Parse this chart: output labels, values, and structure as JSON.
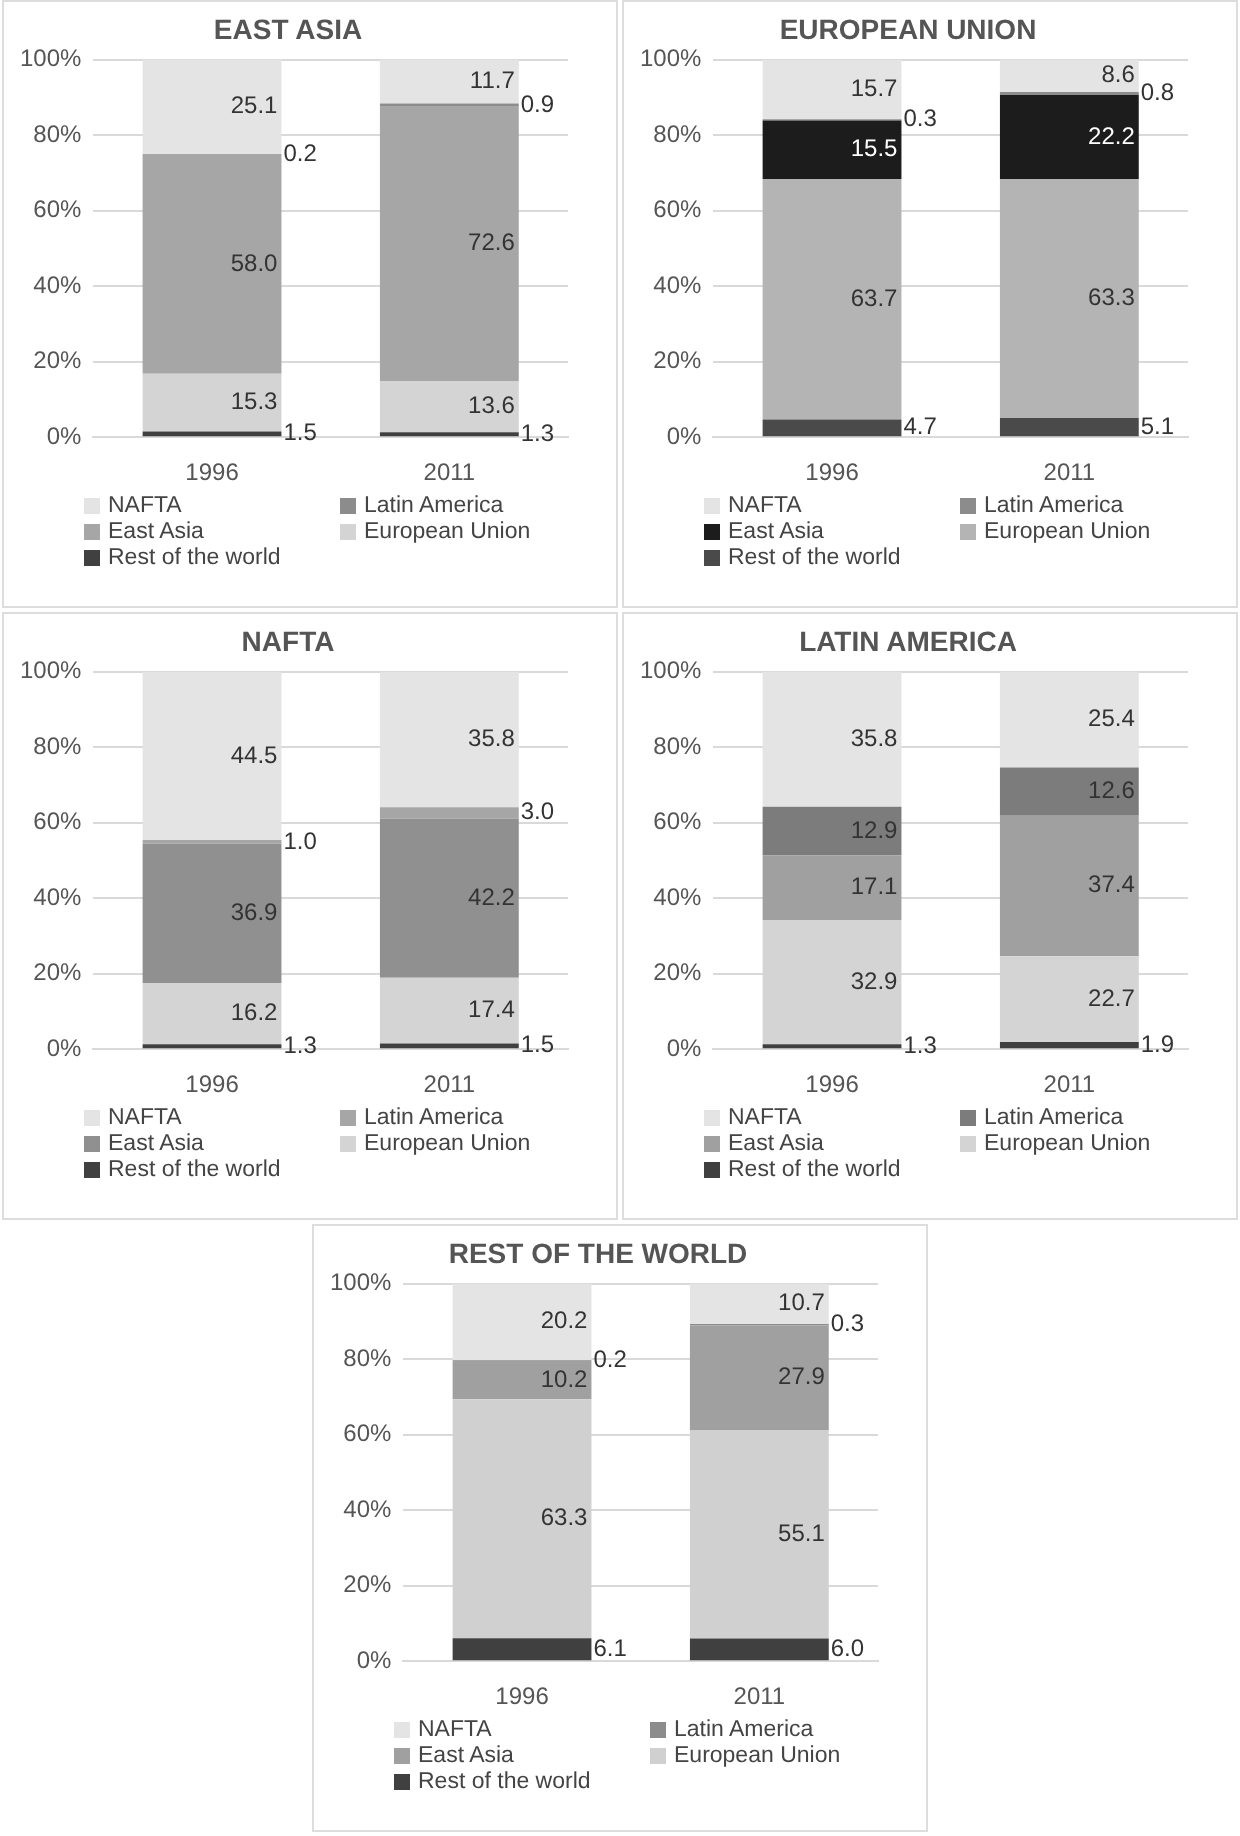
{
  "chart_data": [
    {
      "type": "bar",
      "title": "EAST ASIA",
      "categories": [
        "1996",
        "2011"
      ],
      "stacked": true,
      "legend": "bottom",
      "grid": "y",
      "ylim": [
        0,
        100
      ],
      "yticks": [
        {
          "value": 0,
          "label": "0%"
        },
        {
          "value": 20,
          "label": "20%"
        },
        {
          "value": 40,
          "label": "40%"
        },
        {
          "value": 60,
          "label": "60%"
        },
        {
          "value": 80,
          "label": "80%"
        },
        {
          "value": 100,
          "label": "100%"
        }
      ],
      "series": [
        {
          "name": "Rest of the world",
          "color": "#404040",
          "values": [
            1.5,
            1.3
          ],
          "value_labels": [
            "1.5",
            "1.3"
          ]
        },
        {
          "name": "European Union",
          "color": "#d4d4d4",
          "values": [
            15.3,
            13.6
          ],
          "value_labels": [
            "15.3",
            "13.6"
          ]
        },
        {
          "name": "East Asia",
          "color": "#a6a6a6",
          "values": [
            58.0,
            72.6
          ],
          "value_labels": [
            "58.0",
            "72.6"
          ]
        },
        {
          "name": "Latin America",
          "color": "#8c8c8c",
          "values": [
            0.2,
            0.9
          ],
          "value_labels": [
            "0.2",
            "0.9"
          ]
        },
        {
          "name": "NAFTA",
          "color": "#e4e4e4",
          "values": [
            25.1,
            11.7
          ],
          "value_labels": [
            "25.1",
            "11.7"
          ]
        }
      ]
    },
    {
      "type": "bar",
      "title": "EUROPEAN UNION",
      "categories": [
        "1996",
        "2011"
      ],
      "stacked": true,
      "legend": "bottom",
      "grid": "y",
      "ylim": [
        0,
        100
      ],
      "yticks": [
        {
          "value": 0,
          "label": "0%"
        },
        {
          "value": 20,
          "label": "20%"
        },
        {
          "value": 40,
          "label": "40%"
        },
        {
          "value": 60,
          "label": "60%"
        },
        {
          "value": 80,
          "label": "80%"
        },
        {
          "value": 100,
          "label": "100%"
        }
      ],
      "series": [
        {
          "name": "Rest of the world",
          "color": "#4a4a4a",
          "values": [
            4.7,
            5.1
          ],
          "value_labels": [
            "4.7",
            "5.1"
          ]
        },
        {
          "name": "European Union",
          "color": "#b4b4b4",
          "values": [
            63.7,
            63.3
          ],
          "value_labels": [
            "63.7",
            "63.3"
          ]
        },
        {
          "name": "East Asia",
          "color": "#1c1c1c",
          "values": [
            15.5,
            22.2
          ],
          "value_labels": [
            "15.5",
            "22.2"
          ]
        },
        {
          "name": "Latin America",
          "color": "#8c8c8c",
          "values": [
            0.3,
            0.8
          ],
          "value_labels": [
            "0.3",
            "0.8"
          ]
        },
        {
          "name": "NAFTA",
          "color": "#e4e4e4",
          "values": [
            15.7,
            8.6
          ],
          "value_labels": [
            "15.7",
            "8.6"
          ]
        }
      ]
    },
    {
      "type": "bar",
      "title": "NAFTA",
      "categories": [
        "1996",
        "2011"
      ],
      "stacked": true,
      "legend": "bottom",
      "grid": "y",
      "ylim": [
        0,
        100
      ],
      "yticks": [
        {
          "value": 0,
          "label": "0%"
        },
        {
          "value": 20,
          "label": "20%"
        },
        {
          "value": 40,
          "label": "40%"
        },
        {
          "value": 60,
          "label": "60%"
        },
        {
          "value": 80,
          "label": "80%"
        },
        {
          "value": 100,
          "label": "100%"
        }
      ],
      "series": [
        {
          "name": "Rest of the world",
          "color": "#404040",
          "values": [
            1.3,
            1.5
          ],
          "value_labels": [
            "1.3",
            "1.5"
          ]
        },
        {
          "name": "European Union",
          "color": "#d4d4d4",
          "values": [
            16.2,
            17.4
          ],
          "value_labels": [
            "16.2",
            "17.4"
          ]
        },
        {
          "name": "East Asia",
          "color": "#909090",
          "values": [
            36.9,
            42.2
          ],
          "value_labels": [
            "36.9",
            "42.2"
          ]
        },
        {
          "name": "Latin America",
          "color": "#a6a6a6",
          "values": [
            1.0,
            3.0
          ],
          "value_labels": [
            "1.0",
            "3.0"
          ]
        },
        {
          "name": "NAFTA",
          "color": "#e4e4e4",
          "values": [
            44.5,
            35.8
          ],
          "value_labels": [
            "44.5",
            "35.8"
          ]
        }
      ]
    },
    {
      "type": "bar",
      "title": "LATIN AMERICA",
      "categories": [
        "1996",
        "2011"
      ],
      "stacked": true,
      "legend": "bottom",
      "grid": "y",
      "ylim": [
        0,
        100
      ],
      "yticks": [
        {
          "value": 0,
          "label": "0%"
        },
        {
          "value": 20,
          "label": "20%"
        },
        {
          "value": 40,
          "label": "40%"
        },
        {
          "value": 60,
          "label": "60%"
        },
        {
          "value": 80,
          "label": "80%"
        },
        {
          "value": 100,
          "label": "100%"
        }
      ],
      "series": [
        {
          "name": "Rest of the world",
          "color": "#404040",
          "values": [
            1.3,
            1.9
          ],
          "value_labels": [
            "1.3",
            "1.9"
          ]
        },
        {
          "name": "European Union",
          "color": "#d4d4d4",
          "values": [
            32.9,
            22.7
          ],
          "value_labels": [
            "32.9",
            "22.7"
          ]
        },
        {
          "name": "East Asia",
          "color": "#a0a0a0",
          "values": [
            17.1,
            37.4
          ],
          "value_labels": [
            "17.1",
            "37.4"
          ]
        },
        {
          "name": "Latin America",
          "color": "#7c7c7c",
          "values": [
            12.9,
            12.6
          ],
          "value_labels": [
            "12.9",
            "12.6"
          ]
        },
        {
          "name": "NAFTA",
          "color": "#e4e4e4",
          "values": [
            35.8,
            25.4
          ],
          "value_labels": [
            "35.8",
            "25.4"
          ]
        }
      ]
    },
    {
      "type": "bar",
      "title": "REST OF THE WORLD",
      "categories": [
        "1996",
        "2011"
      ],
      "stacked": true,
      "legend": "bottom",
      "grid": "y",
      "ylim": [
        0,
        100
      ],
      "yticks": [
        {
          "value": 0,
          "label": "0%"
        },
        {
          "value": 20,
          "label": "20%"
        },
        {
          "value": 40,
          "label": "40%"
        },
        {
          "value": 60,
          "label": "60%"
        },
        {
          "value": 80,
          "label": "80%"
        },
        {
          "value": 100,
          "label": "100%"
        }
      ],
      "series": [
        {
          "name": "Rest of the world",
          "color": "#404040",
          "values": [
            6.1,
            6.0
          ],
          "value_labels": [
            "6.1",
            "6.0"
          ]
        },
        {
          "name": "European Union",
          "color": "#d0d0d0",
          "values": [
            63.3,
            55.1
          ],
          "value_labels": [
            "63.3",
            "55.1"
          ]
        },
        {
          "name": "East Asia",
          "color": "#a0a0a0",
          "values": [
            10.2,
            27.9
          ],
          "value_labels": [
            "10.2",
            "27.9"
          ]
        },
        {
          "name": "Latin America",
          "color": "#8c8c8c",
          "values": [
            0.2,
            0.3
          ],
          "value_labels": [
            "0.2",
            "0.3"
          ]
        },
        {
          "name": "NAFTA",
          "color": "#e4e4e4",
          "values": [
            20.2,
            10.7
          ],
          "value_labels": [
            "20.2",
            "10.7"
          ]
        }
      ]
    }
  ]
}
